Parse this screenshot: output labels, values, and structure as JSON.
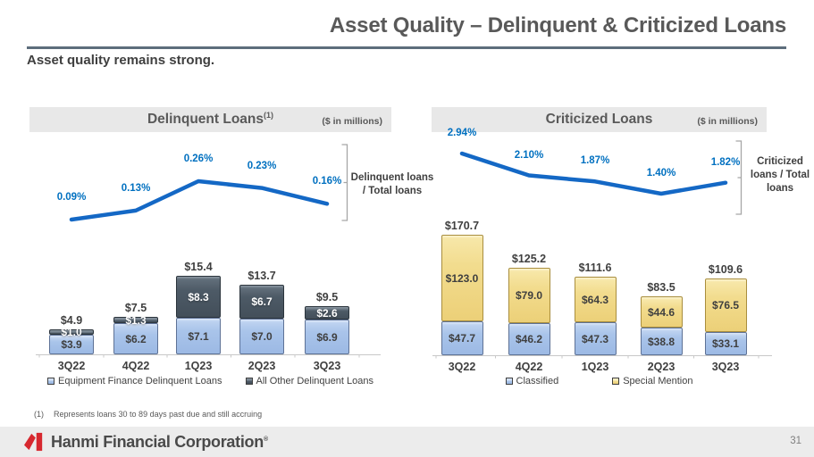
{
  "page": {
    "title": "Asset Quality – Delinquent & Criticized Loans",
    "subtitle": "Asset quality remains strong.",
    "footnote_marker": "(1)",
    "footnote_text": "Represents loans 30 to 89 days past due and still accruing",
    "footer_brand": "Hanmi Financial Corporation",
    "footer_trademark": "®",
    "page_number": "31"
  },
  "colors": {
    "line_blue": "#1468C5",
    "pct_label_blue": "#0070C0",
    "bar_light_blue": "#A9C4EA",
    "bar_dark_slate": "#4D5A66",
    "bar_yellow": "#F2DC8E",
    "header_gray": "#E8E8E8",
    "brand_red": "#D7282F"
  },
  "chart_data": [
    {
      "type": "bar",
      "panel": "delinquent-loans",
      "header": {
        "title": "Delinquent Loans",
        "superscript": "(1)",
        "units": "($ in millions)"
      },
      "categories": [
        "3Q22",
        "4Q22",
        "1Q23",
        "2Q23",
        "3Q23"
      ],
      "series": [
        {
          "name": "Equipment Finance Delinquent Loans",
          "color": "light_blue",
          "values": [
            3.9,
            6.2,
            7.1,
            7.0,
            6.9
          ],
          "labels": [
            "$3.9",
            "$6.2",
            "$7.1",
            "$7.0",
            "$6.9"
          ]
        },
        {
          "name": "All Other Delinquent Loans",
          "color": "dark_slate",
          "values": [
            1.0,
            1.3,
            8.3,
            6.7,
            2.6
          ],
          "labels": [
            "$1.0",
            "$1.3",
            "$8.3",
            "$6.7",
            "$2.6"
          ]
        }
      ],
      "totals": {
        "values": [
          4.9,
          7.5,
          15.4,
          13.7,
          9.5
        ],
        "labels": [
          "$4.9",
          "$7.5",
          "$15.4",
          "$13.7",
          "$9.5"
        ]
      },
      "ratio_line": {
        "name": "Delinquent loans / Total loans",
        "values_percent": [
          0.09,
          0.13,
          0.26,
          0.23,
          0.16
        ],
        "labels": [
          "0.09%",
          "0.13%",
          "0.26%",
          "0.23%",
          "0.16%"
        ]
      }
    },
    {
      "type": "bar",
      "panel": "criticized-loans",
      "header": {
        "title": "Criticized Loans",
        "superscript": "",
        "units": "($ in millions)"
      },
      "categories": [
        "3Q22",
        "4Q22",
        "1Q23",
        "2Q23",
        "3Q23"
      ],
      "series": [
        {
          "name": "Classified",
          "color": "light_blue",
          "values": [
            47.7,
            46.2,
            47.3,
            38.8,
            33.1
          ],
          "labels": [
            "$47.7",
            "$46.2",
            "$47.3",
            "$38.8",
            "$33.1"
          ]
        },
        {
          "name": "Special Mention",
          "color": "yellow",
          "values": [
            123.0,
            79.0,
            64.3,
            44.6,
            76.5
          ],
          "labels": [
            "$123.0",
            "$79.0",
            "$64.3",
            "$44.6",
            "$76.5"
          ]
        }
      ],
      "totals": {
        "values": [
          170.7,
          125.2,
          111.6,
          83.5,
          109.6
        ],
        "labels": [
          "$170.7",
          "$125.2",
          "$111.6",
          "$83.5",
          "$109.6"
        ]
      },
      "ratio_line": {
        "name": "Criticized loans / Total loans",
        "values_percent": [
          2.94,
          2.1,
          1.87,
          1.4,
          1.82
        ],
        "labels": [
          "2.94%",
          "2.10%",
          "1.87%",
          "1.40%",
          "1.82%"
        ]
      }
    }
  ]
}
